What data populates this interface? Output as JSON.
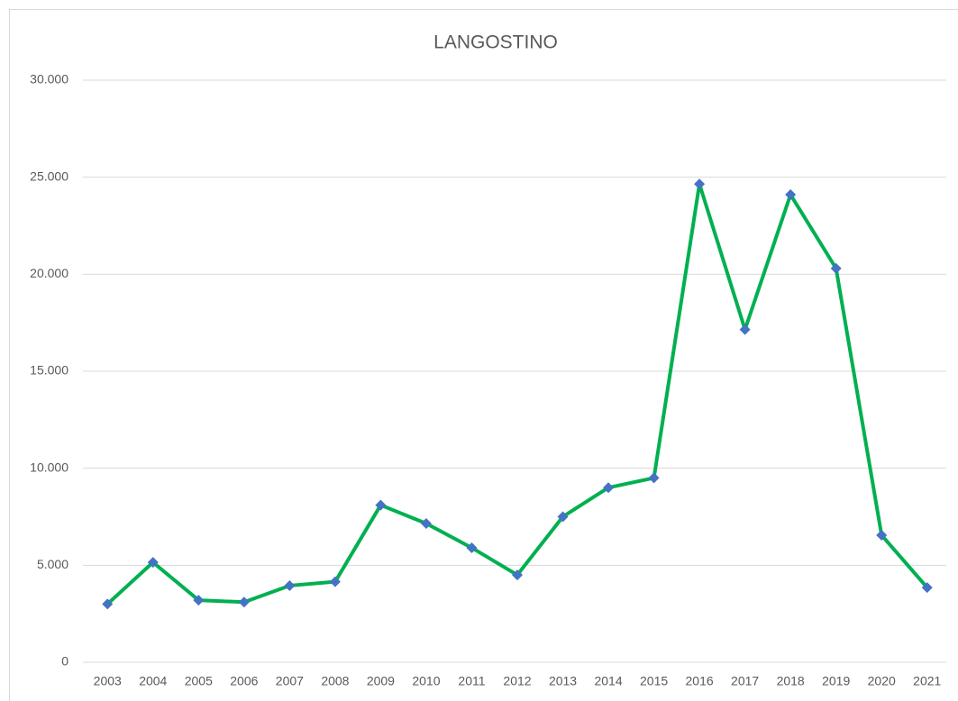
{
  "chart_data": {
    "type": "line",
    "title": "LANGOSTINO",
    "categories": [
      "2003",
      "2004",
      "2005",
      "2006",
      "2007",
      "2008",
      "2009",
      "2010",
      "2011",
      "2012",
      "2013",
      "2014",
      "2015",
      "2016",
      "2017",
      "2018",
      "2019",
      "2020",
      "2021"
    ],
    "values": [
      3000,
      5150,
      3200,
      3100,
      3950,
      4150,
      8100,
      7150,
      5900,
      4500,
      7500,
      9000,
      9500,
      24650,
      17150,
      24100,
      20300,
      6550,
      3850
    ],
    "color": "#00b050",
    "marker_color": "#4472c4",
    "ylim": [
      0,
      30000
    ],
    "yticks": [
      0,
      {
        "value": 5000,
        "label": "5.000"
      },
      {
        "value": 10000,
        "label": "10.000"
      },
      {
        "value": 15000,
        "label": "15.000"
      },
      {
        "value": 20000,
        "label": "20.000"
      },
      {
        "value": 25000,
        "label": "25.000"
      },
      {
        "value": 30000,
        "label": "30.000"
      }
    ],
    "grid": true
  }
}
